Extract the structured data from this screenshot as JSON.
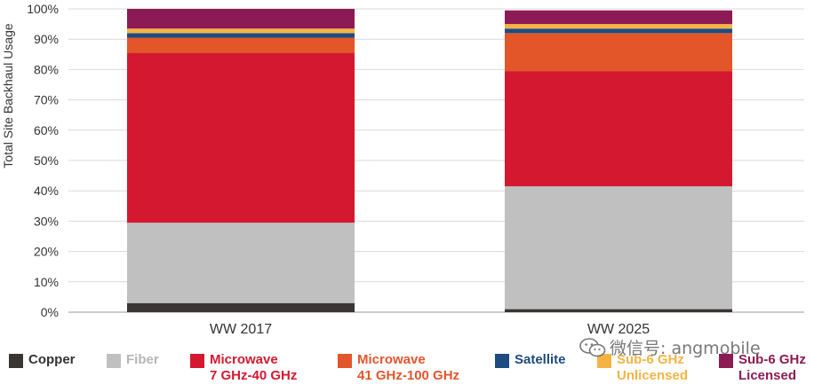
{
  "chart_data": {
    "type": "bar",
    "stacked": true,
    "categories": [
      "WW 2017",
      "WW 2025"
    ],
    "ylabel": "Total Site Backhaul Usage",
    "ylim": [
      0,
      100
    ],
    "yticks": [
      0,
      10,
      20,
      30,
      40,
      50,
      60,
      70,
      80,
      90,
      100
    ],
    "ytick_labels": [
      "0%",
      "10%",
      "20%",
      "30%",
      "40%",
      "50%",
      "60%",
      "70%",
      "80%",
      "90%",
      "100%"
    ],
    "grid": true,
    "legend_position": "bottom",
    "series": [
      {
        "name": "Copper",
        "label_lines": [
          "Copper"
        ],
        "color": "#3a3533",
        "values": [
          3,
          1
        ]
      },
      {
        "name": "Fiber",
        "label_lines": [
          "Fiber"
        ],
        "color": "#c0c0c1",
        "values": [
          26.5,
          40.5
        ]
      },
      {
        "name": "Microwave 7 GHz-40 GHz",
        "label_lines": [
          "Microwave",
          "7 GHz-40 GHz"
        ],
        "color": "#d4182f",
        "values": [
          56,
          38
        ]
      },
      {
        "name": "Microwave 41 GHz-100 GHz",
        "label_lines": [
          "Microwave",
          "41 GHz-100 GHz"
        ],
        "color": "#e2562a",
        "values": [
          5,
          12.5
        ]
      },
      {
        "name": "Satellite",
        "label_lines": [
          "Satellite"
        ],
        "color": "#1d4b82",
        "values": [
          1.5,
          1.5
        ]
      },
      {
        "name": "Sub-6 GHz Unlicensed",
        "label_lines": [
          "Sub-6 GHz",
          "Unlicensed"
        ],
        "color": "#f3b443",
        "values": [
          1.5,
          1.5
        ]
      },
      {
        "name": "Sub-6 GHz Licensed",
        "label_lines": [
          "Sub-6 GHz",
          "Licensed"
        ],
        "color": "#8c1b55",
        "values": [
          6.5,
          4.5
        ]
      }
    ]
  },
  "watermark": {
    "text": "微信号: angmobile",
    "icon": "wechat-icon"
  }
}
